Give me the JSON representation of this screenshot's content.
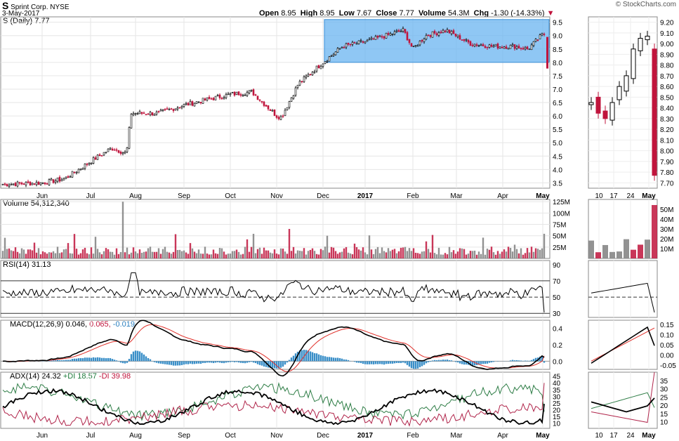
{
  "header": {
    "ticker": "S",
    "company": "Sprint Corp.",
    "exchange": "NYSE",
    "date": "3-May-2017",
    "open_label": "Open",
    "open": "8.95",
    "high_label": "High",
    "high": "8.95",
    "low_label": "Low",
    "low": "7.67",
    "close_label": "Close",
    "close": "7.77",
    "volume_label": "Volume",
    "volume": "54.3M",
    "chg_label": "Chg",
    "chg": "-1.30 (-14.33%)",
    "chg_arrow": "▼",
    "source": "© StockCharts.com"
  },
  "panels": {
    "price": "S (Daily) 7.77",
    "volume": "Volume 54,312,340",
    "rsi": "RSI(14) 31.13",
    "macd_prefix": "MACD(12,26,9)",
    "macd_value": "0.046,",
    "macd_signal": "0.065,",
    "macd_hist": "-0.019",
    "adx_prefix": "ADX(14) 24.32",
    "pdi": "+DI 18.57",
    "mdi": "-DI 39.98"
  },
  "colors": {
    "up": "#000000",
    "down": "#c0143c",
    "highlight": "#6ab4f0",
    "volume_up": "#7f7f7f",
    "macd_line": "#000000",
    "signal_line": "#e0302a",
    "histogram": "#3a8fc8",
    "adx": "#000000",
    "plus_di": "#2e7d46",
    "minus_di": "#b0244a"
  },
  "chart_data": [
    {
      "type": "line",
      "title": "S (Daily) 7.77",
      "x_tick_labels": [
        "Jun",
        "Jul",
        "Aug",
        "Sep",
        "Oct",
        "Nov",
        "Dec",
        "2017",
        "Feb",
        "Mar",
        "Apr",
        "May"
      ],
      "y_tick_labels": [
        "3.5",
        "4.0",
        "4.5",
        "5.0",
        "5.5",
        "6.0",
        "6.5",
        "7.0",
        "7.5",
        "8.0",
        "8.5",
        "9.0",
        "9.5"
      ],
      "ylim": [
        3.3,
        9.7
      ],
      "series": [
        {
          "x": [
            "May-16",
            "Jun-1",
            "Jun-15",
            "Jul-1",
            "Jul-15",
            "Jul-25",
            "Jul-28",
            "Aug-15",
            "Sep-1",
            "Sep-15",
            "Oct-1",
            "Oct-15",
            "Nov-1",
            "Nov-4",
            "Nov-15",
            "Dec-1",
            "Dec-15",
            "Jan-3",
            "Jan-25",
            "Feb-1",
            "Feb-10",
            "Feb-24",
            "Mar-10",
            "Mar-24",
            "Apr-10",
            "Apr-20",
            "May-1",
            "May-2",
            "May-3"
          ],
          "values": [
            3.45,
            3.5,
            3.65,
            4.3,
            4.8,
            4.6,
            6.1,
            6.1,
            6.4,
            6.6,
            6.8,
            6.9,
            6.0,
            5.95,
            7.2,
            8.0,
            8.6,
            8.8,
            9.2,
            8.5,
            9.0,
            9.2,
            8.7,
            8.6,
            8.6,
            8.5,
            9.05,
            9.07,
            7.77
          ]
        }
      ],
      "annotations": [
        {
          "type": "shaded-range",
          "from": "Dec",
          "to": "May",
          "y_low": 8.0,
          "y_high": 9.6
        }
      ]
    },
    {
      "type": "bar",
      "title": "Volume 54,312,340",
      "y_tick_labels": [
        "25M",
        "50M",
        "75M",
        "100M",
        "125M"
      ],
      "ylim": [
        0,
        130
      ],
      "spikes_millions": [
        {
          "x": "late Jul",
          "value": 125
        },
        {
          "x": "Nov",
          "value": 65
        },
        {
          "x": "Dec",
          "value": 50
        },
        {
          "x": "May-3",
          "value": 54.3
        }
      ]
    },
    {
      "type": "line",
      "title": "RSI(14) 31.13",
      "y_tick_labels": [
        "30",
        "50",
        "70",
        "90"
      ],
      "ylim": [
        25,
        95
      ],
      "reference_lines": [
        30,
        50,
        70
      ],
      "last": 31.13
    },
    {
      "type": "line",
      "title": "MACD(12,26,9) 0.046, 0.065, -0.019",
      "y_tick_labels": [
        "0.0",
        "0.2",
        "0.4"
      ],
      "ylim": [
        -0.1,
        0.5
      ],
      "series": [
        {
          "name": "MACD",
          "last": 0.046
        },
        {
          "name": "Signal",
          "last": 0.065
        },
        {
          "name": "Histogram",
          "last": -0.019
        }
      ]
    },
    {
      "type": "line",
      "title": "ADX(14) 24.32 +DI 18.57 -DI 39.98",
      "y_tick_labels": [
        "10",
        "15",
        "20",
        "25",
        "30",
        "35",
        "40",
        "45"
      ],
      "ylim": [
        6,
        48
      ],
      "series": [
        {
          "name": "ADX(14)",
          "last": 24.32
        },
        {
          "name": "+DI",
          "last": 18.57
        },
        {
          "name": "-DI",
          "last": 39.98
        }
      ]
    },
    {
      "type": "line",
      "title": "",
      "x_tick_labels": [
        "10",
        "17",
        "24",
        "May"
      ],
      "y_tick_labels": [
        "7.70",
        "7.80",
        "7.90",
        "8.00",
        "8.10",
        "8.20",
        "8.30",
        "8.40",
        "8.50",
        "8.60",
        "8.70",
        "8.80",
        "8.90",
        "9.00",
        "9.10",
        "9.20"
      ],
      "ylim": [
        7.65,
        9.25
      ],
      "series": [
        {
          "x": [
            "Apr-5",
            "Apr-10",
            "Apr-13",
            "Apr-17",
            "Apr-20",
            "Apr-24",
            "Apr-27",
            "May-1",
            "May-2",
            "May-3"
          ],
          "values": [
            8.45,
            8.35,
            8.3,
            8.45,
            8.6,
            8.7,
            8.95,
            9.05,
            9.07,
            7.77
          ]
        }
      ],
      "volume_y_tick_labels": [
        "10M",
        "20M",
        "30M",
        "40M",
        "50M"
      ],
      "macd_y_tick_labels": [
        "-0.05",
        "0.00",
        "0.05",
        "0.10",
        "0.15"
      ],
      "adx_y_tick_labels": [
        "10",
        "15",
        "20",
        "25",
        "30",
        "35"
      ]
    }
  ]
}
